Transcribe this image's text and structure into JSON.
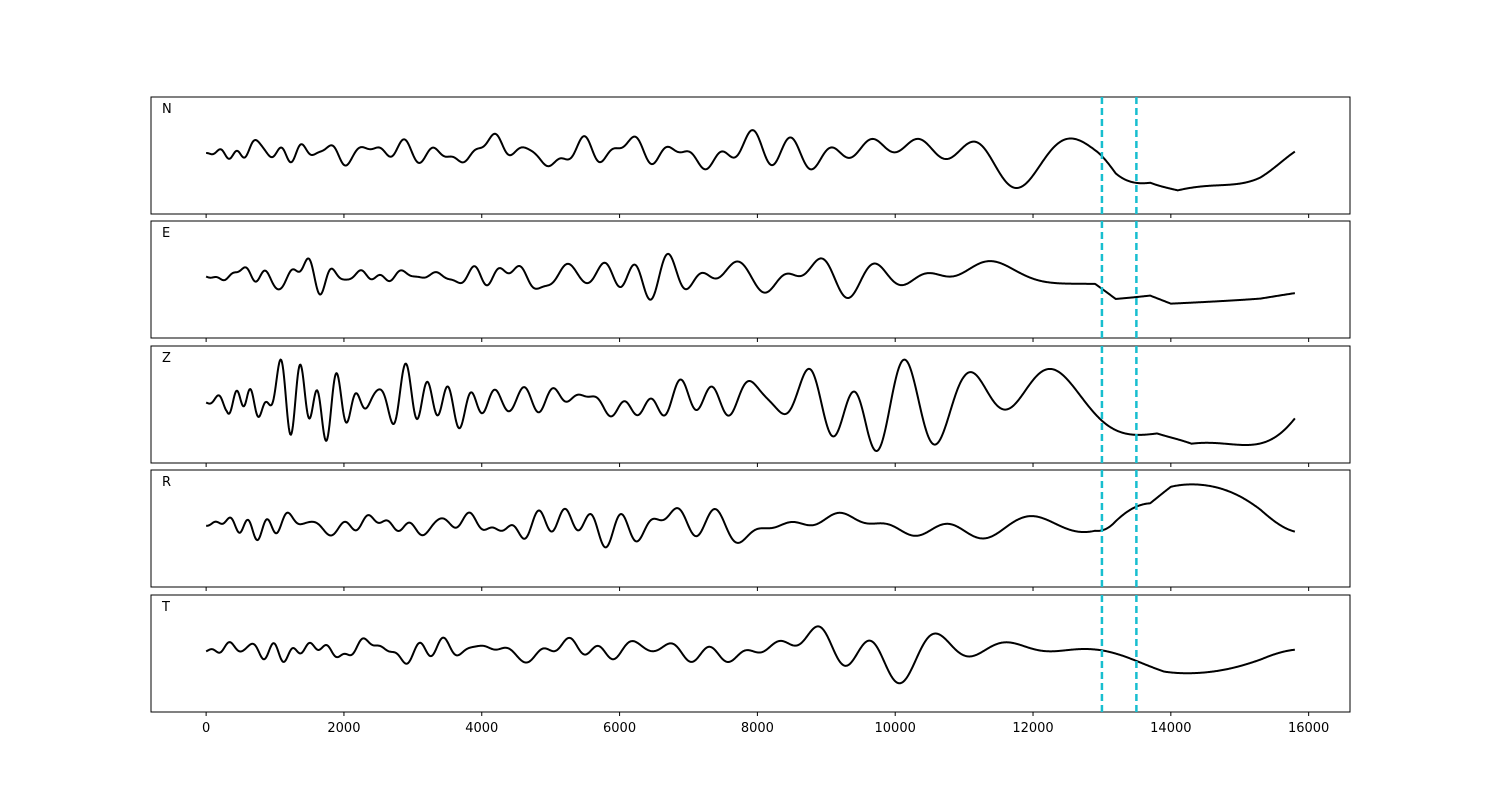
{
  "chart_data": {
    "type": "line",
    "xlim": [
      -800,
      16600
    ],
    "x_ticks": [
      0,
      2000,
      4000,
      6000,
      8000,
      10000,
      12000,
      14000,
      16000
    ],
    "x_tick_labels": [
      "0",
      "2000",
      "4000",
      "6000",
      "8000",
      "10000",
      "12000",
      "14000",
      "16000"
    ],
    "sample_count": 15800,
    "line_color": "#000000",
    "marker_color": "#17becf",
    "vertical_markers": [
      13000,
      13500
    ],
    "panels": [
      {
        "label": "N",
        "envelope": [
          [
            0,
            0.05
          ],
          [
            500,
            0.18
          ],
          [
            3000,
            0.17
          ],
          [
            4300,
            0.22
          ],
          [
            6000,
            0.2
          ],
          [
            7000,
            0.3
          ],
          [
            9500,
            0.32
          ],
          [
            11800,
            0.42
          ],
          [
            12900,
            0.5
          ],
          [
            13200,
            0.88
          ],
          [
            13700,
            0.75
          ],
          [
            14100,
            0.98
          ],
          [
            15300,
            0.7
          ],
          [
            15800,
            0.45
          ]
        ]
      },
      {
        "label": "E",
        "envelope": [
          [
            0,
            0.05
          ],
          [
            500,
            0.18
          ],
          [
            1300,
            0.26
          ],
          [
            3000,
            0.18
          ],
          [
            4700,
            0.26
          ],
          [
            7000,
            0.28
          ],
          [
            8600,
            0.35
          ],
          [
            11000,
            0.3
          ],
          [
            12900,
            0.3
          ],
          [
            13200,
            0.85
          ],
          [
            13700,
            0.7
          ],
          [
            14000,
            0.98
          ],
          [
            15300,
            0.82
          ],
          [
            15800,
            0.65
          ]
        ]
      },
      {
        "label": "Z",
        "envelope": [
          [
            0,
            0.05
          ],
          [
            300,
            0.2
          ],
          [
            600,
            0.9
          ],
          [
            900,
            0.55
          ],
          [
            2500,
            0.45
          ],
          [
            5000,
            0.35
          ],
          [
            6500,
            0.55
          ],
          [
            8600,
            0.55
          ],
          [
            9600,
            0.78
          ],
          [
            11000,
            0.55
          ],
          [
            13000,
            0.6
          ],
          [
            13800,
            0.6
          ],
          [
            14300,
            0.88
          ],
          [
            15800,
            0.7
          ]
        ]
      },
      {
        "label": "R",
        "envelope": [
          [
            0,
            0.05
          ],
          [
            500,
            0.2
          ],
          [
            1300,
            0.22
          ],
          [
            3000,
            0.16
          ],
          [
            4400,
            0.22
          ],
          [
            7200,
            0.3
          ],
          [
            9500,
            0.3
          ],
          [
            11800,
            0.32
          ],
          [
            12900,
            0.4
          ],
          [
            13200,
            0.92
          ],
          [
            13700,
            0.6
          ],
          [
            14000,
            0.82
          ],
          [
            15300,
            0.75
          ],
          [
            15800,
            0.5
          ]
        ]
      },
      {
        "label": "T",
        "envelope": [
          [
            0,
            0.05
          ],
          [
            600,
            0.18
          ],
          [
            2000,
            0.3
          ],
          [
            2400,
            0.22
          ],
          [
            3000,
            0.15
          ],
          [
            4700,
            0.25
          ],
          [
            7000,
            0.3
          ],
          [
            9500,
            0.35
          ],
          [
            11800,
            0.5
          ],
          [
            12900,
            0.55
          ],
          [
            13300,
            0.7
          ],
          [
            13900,
            1.0
          ],
          [
            15300,
            0.82
          ],
          [
            15800,
            0.55
          ]
        ]
      }
    ]
  }
}
